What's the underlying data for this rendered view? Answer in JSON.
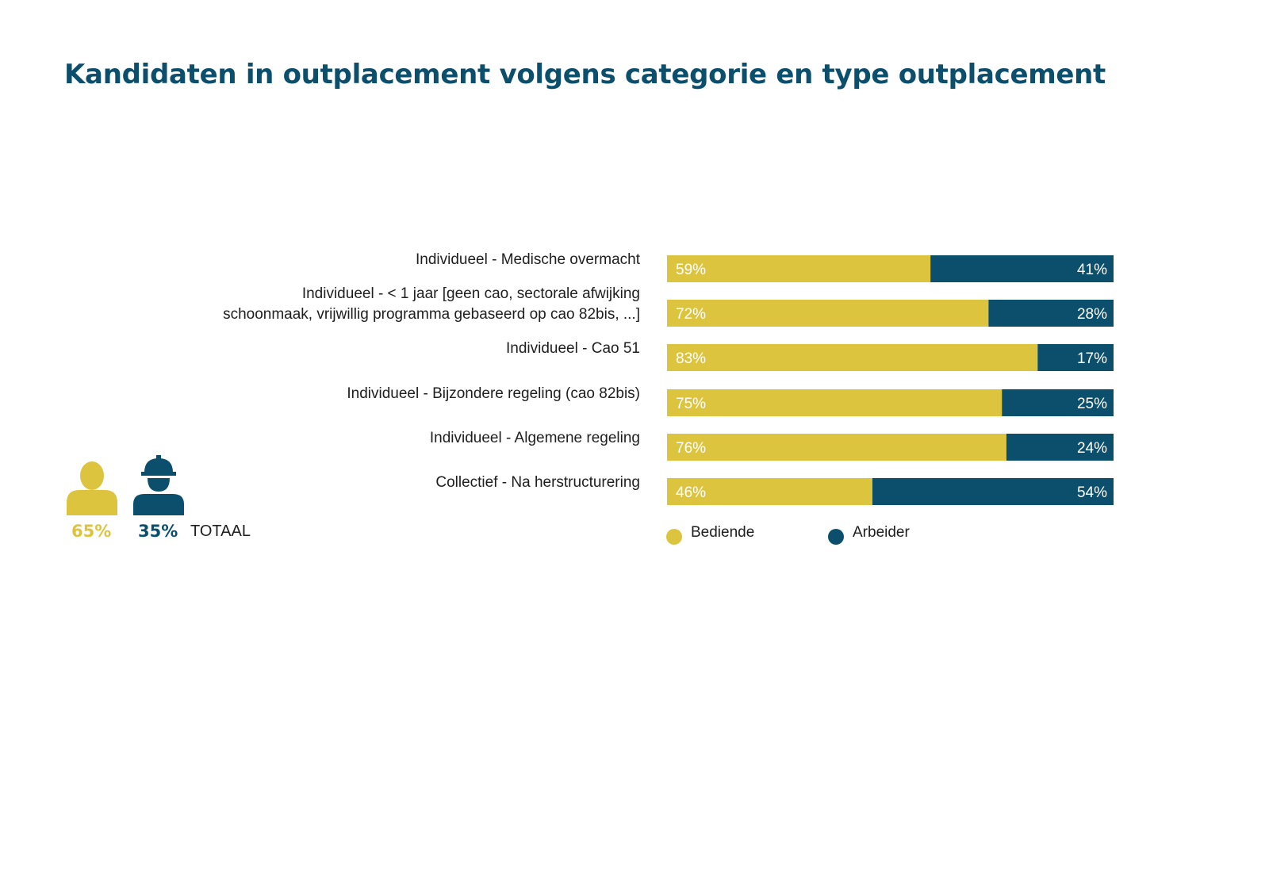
{
  "title": "Kandidaten in outplacement volgens categorie en type outplacement",
  "colors": {
    "title": "#0b4f6c",
    "bediende": "#dcc43f",
    "arbeider": "#0b4f6c"
  },
  "totals": {
    "bediende_pct": "65%",
    "arbeider_pct": "35%",
    "label": "TOTAAL",
    "bediende_icon": "person-icon",
    "arbeider_icon": "worker-helmet-icon"
  },
  "chart_data": {
    "type": "bar",
    "orientation": "horizontal",
    "stacked": true,
    "unit": "%",
    "categories": [
      [
        "Individueel - Medische overmacht"
      ],
      [
        "Individueel - < 1 jaar [geen cao, sectorale afwijking",
        "schoonmaak, vrijwillig programma gebaseerd op cao 82bis, ...]"
      ],
      [
        "Individueel - Cao 51"
      ],
      [
        "Individueel - Bijzondere regeling (cao 82bis)"
      ],
      [
        "Individueel - Algemene regeling"
      ],
      [
        "Collectief - Na herstructurering"
      ]
    ],
    "series": [
      {
        "name": "Bediende",
        "values": [
          59,
          72,
          83,
          75,
          76,
          46
        ],
        "labels": [
          "59%",
          "72%",
          "83%",
          "75%",
          "76%",
          "46%"
        ]
      },
      {
        "name": "Arbeider",
        "values": [
          41,
          28,
          17,
          25,
          24,
          54
        ],
        "labels": [
          "41%",
          "28%",
          "17%",
          "25%",
          "24%",
          "54%"
        ]
      }
    ],
    "xlim": [
      0,
      100
    ],
    "grid": false,
    "legend": "bottom"
  }
}
